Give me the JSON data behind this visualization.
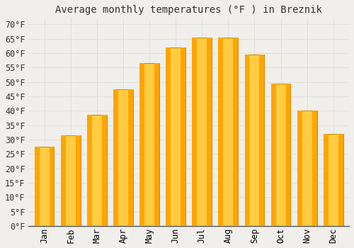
{
  "title": "Average monthly temperatures (°F ) in Breznik",
  "months": [
    "Jan",
    "Feb",
    "Mar",
    "Apr",
    "May",
    "Jun",
    "Jul",
    "Aug",
    "Sep",
    "Oct",
    "Nov",
    "Dec"
  ],
  "values": [
    27.5,
    31.5,
    38.5,
    47.5,
    56.5,
    62.0,
    65.5,
    65.5,
    59.5,
    49.5,
    40.0,
    32.0
  ],
  "bar_color_face": "#FFA500",
  "bar_color_light": "#FFCC44",
  "bar_edge_color": "#CC8800",
  "background_color": "#F0EFEB",
  "plot_bg_color": "#F0EFEB",
  "grid_color": "#DDDDDD",
  "ylim": [
    0,
    72
  ],
  "yticks": [
    0,
    5,
    10,
    15,
    20,
    25,
    30,
    35,
    40,
    45,
    50,
    55,
    60,
    65,
    70
  ],
  "title_fontsize": 10,
  "tick_fontsize": 8.5,
  "font_family": "monospace"
}
